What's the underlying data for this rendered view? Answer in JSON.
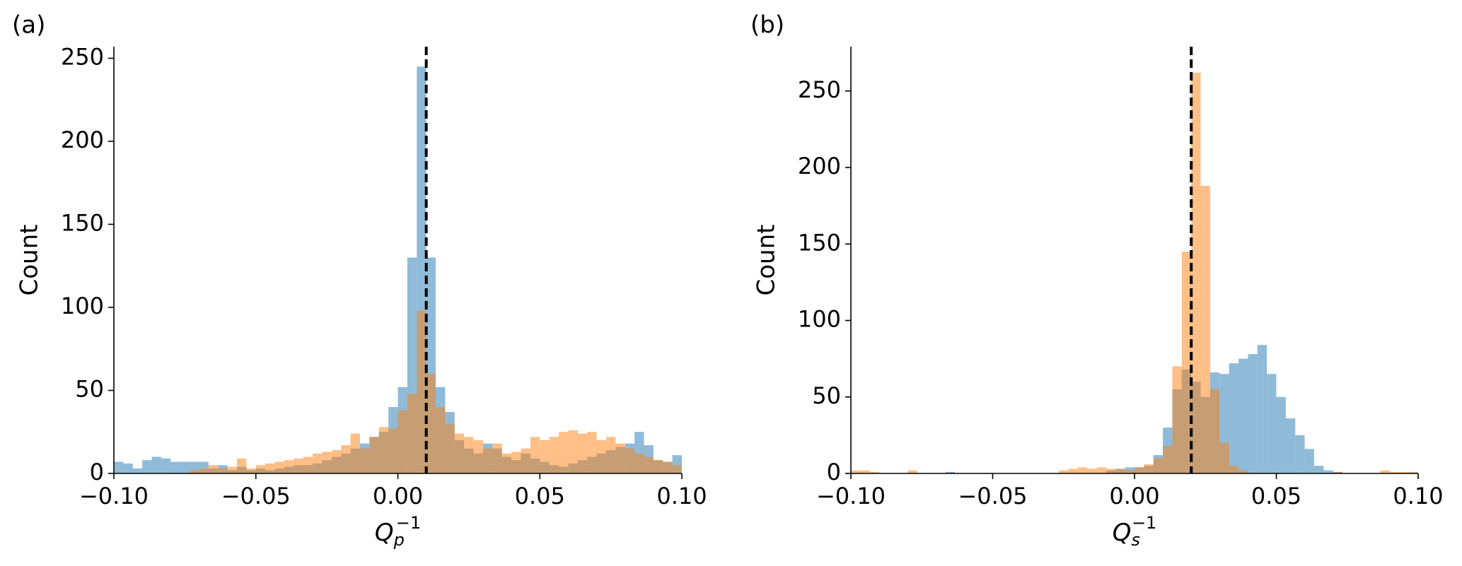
{
  "chart_data": [
    {
      "type": "histogram",
      "panel_label": "(a)",
      "ylabel": "Count",
      "xlabel": {
        "base": "Q",
        "sub": "p",
        "sup": "−1"
      },
      "xlim": [
        -0.1,
        0.1
      ],
      "ylim": [
        0,
        257
      ],
      "xticks": [
        {
          "value": -0.1,
          "label": "−0.10"
        },
        {
          "value": -0.05,
          "label": "−0.05"
        },
        {
          "value": 0,
          "label": "0.00"
        },
        0.05,
        {
          "value": 0.1,
          "label": "0.10"
        }
      ],
      "yticks": [
        0,
        50,
        100,
        150,
        200,
        250
      ],
      "vline": 0.01,
      "bins": [
        -0.1,
        -0.09667,
        -0.09333,
        -0.09,
        -0.08667,
        -0.08333,
        -0.08,
        -0.07667,
        -0.07333,
        -0.07,
        -0.06667,
        -0.06333,
        -0.06,
        -0.05667,
        -0.05333,
        -0.05,
        -0.04667,
        -0.04333,
        -0.04,
        -0.03667,
        -0.03333,
        -0.03,
        -0.02667,
        -0.02333,
        -0.02,
        -0.01667,
        -0.01333,
        -0.01,
        -0.00667,
        -0.00333,
        0,
        0.00333,
        0.00667,
        0.01,
        0.01333,
        0.01667,
        0.02,
        0.02333,
        0.02667,
        0.03,
        0.03333,
        0.03667,
        0.04,
        0.04333,
        0.04667,
        0.05,
        0.05333,
        0.05667,
        0.06,
        0.06333,
        0.06667,
        0.07,
        0.07333,
        0.07667,
        0.08,
        0.08333,
        0.08667,
        0.09,
        0.09333,
        0.09667,
        0.1
      ],
      "series": [
        {
          "color": "#1f77b4",
          "values": [
            7,
            6,
            3,
            8,
            10,
            9,
            7,
            7,
            7,
            7,
            3,
            5,
            2,
            4,
            2,
            3,
            2,
            3,
            4,
            5,
            5,
            6,
            8,
            10,
            12,
            15,
            18,
            22,
            25,
            40,
            52,
            130,
            245,
            130,
            52,
            37,
            20,
            15,
            12,
            18,
            15,
            10,
            8,
            12,
            9,
            7,
            5,
            4,
            6,
            8,
            10,
            12,
            14,
            16,
            18,
            25,
            17,
            8,
            7,
            11
          ]
        },
        {
          "color": "#ff7f0e",
          "values": [
            0,
            0,
            0,
            0,
            0,
            0,
            0,
            0,
            2,
            3,
            5,
            3,
            4,
            9,
            3,
            5,
            6,
            7,
            8,
            9,
            10,
            12,
            13,
            14,
            17,
            24,
            15,
            22,
            28,
            27,
            38,
            48,
            98,
            60,
            40,
            30,
            24,
            22,
            20,
            15,
            18,
            12,
            13,
            15,
            22,
            20,
            22,
            25,
            26,
            24,
            25,
            20,
            22,
            18,
            15,
            12,
            10,
            8,
            7,
            5
          ]
        }
      ]
    },
    {
      "type": "histogram",
      "panel_label": "(b)",
      "ylabel": "Count",
      "xlabel": {
        "base": "Q",
        "sub": "s",
        "sup": "−1"
      },
      "xlim": [
        -0.1,
        0.1
      ],
      "ylim": [
        0,
        279
      ],
      "xticks": [
        {
          "value": -0.1,
          "label": "−0.10"
        },
        {
          "value": -0.05,
          "label": "−0.05"
        },
        {
          "value": 0,
          "label": "0.00"
        },
        0.05,
        {
          "value": 0.1,
          "label": "0.10"
        }
      ],
      "yticks": [
        0,
        50,
        100,
        150,
        200,
        250
      ],
      "vline": 0.02,
      "bins": [
        -0.1,
        -0.09667,
        -0.09333,
        -0.09,
        -0.08667,
        -0.08333,
        -0.08,
        -0.07667,
        -0.07333,
        -0.07,
        -0.06667,
        -0.06333,
        -0.06,
        -0.05667,
        -0.05333,
        -0.05,
        -0.04667,
        -0.04333,
        -0.04,
        -0.03667,
        -0.03333,
        -0.03,
        -0.02667,
        -0.02333,
        -0.02,
        -0.01667,
        -0.01333,
        -0.01,
        -0.00667,
        -0.00333,
        0,
        0.00333,
        0.00667,
        0.01,
        0.01333,
        0.01667,
        0.02,
        0.02333,
        0.02667,
        0.03,
        0.03333,
        0.03667,
        0.04,
        0.04333,
        0.04667,
        0.05,
        0.05333,
        0.05667,
        0.06,
        0.06333,
        0.06667,
        0.07,
        0.07333,
        0.07667,
        0.08,
        0.08333,
        0.08667,
        0.09,
        0.09333,
        0.09667,
        0.1
      ],
      "series": [
        {
          "color": "#1f77b4",
          "values": [
            0,
            0,
            0,
            0,
            0,
            0,
            0,
            0,
            0,
            0,
            1,
            0,
            0,
            0,
            0,
            0,
            0,
            0,
            0,
            0,
            0,
            0,
            0,
            0,
            0,
            0,
            0,
            2,
            3,
            4,
            4,
            5,
            12,
            30,
            55,
            68,
            60,
            50,
            66,
            65,
            72,
            75,
            78,
            84,
            65,
            50,
            36,
            25,
            16,
            5,
            2,
            1,
            0,
            0,
            0,
            0,
            0,
            0,
            0,
            0
          ]
        },
        {
          "color": "#ff7f0e",
          "values": [
            2,
            2,
            1,
            0,
            0,
            0,
            2,
            0,
            0,
            0,
            0,
            0,
            0,
            0,
            0,
            0,
            0,
            0,
            0,
            0,
            0,
            0,
            2,
            3,
            4,
            3,
            4,
            3,
            3,
            2,
            4,
            6,
            10,
            18,
            70,
            145,
            262,
            188,
            55,
            20,
            5,
            2,
            0,
            0,
            0,
            0,
            0,
            0,
            0,
            0,
            0,
            1,
            0,
            0,
            0,
            0,
            2,
            1,
            1,
            1
          ]
        }
      ]
    }
  ]
}
